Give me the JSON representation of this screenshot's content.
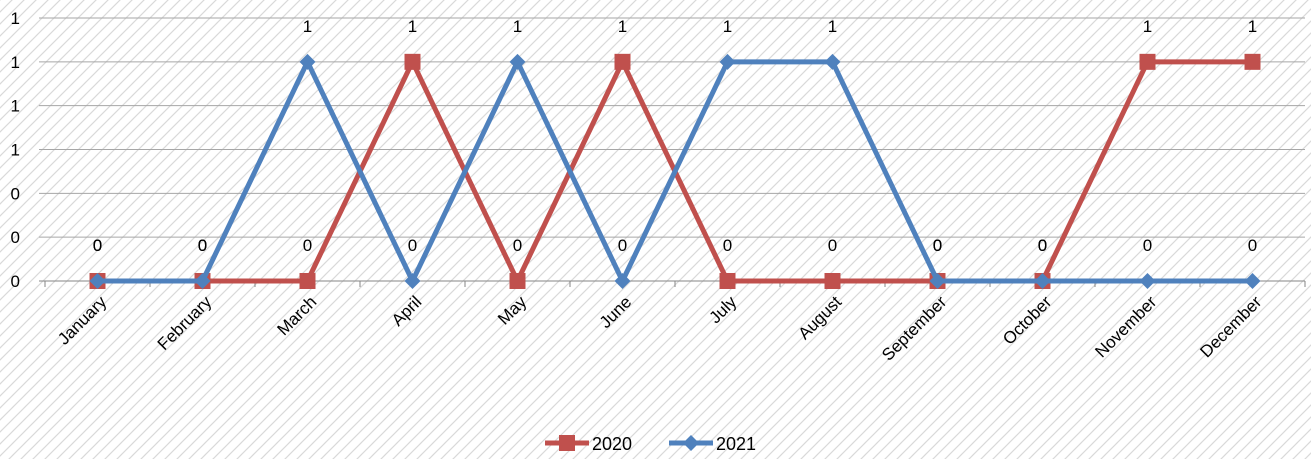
{
  "chart_data": {
    "type": "line",
    "title": "",
    "xlabel": "",
    "ylabel": "",
    "categories": [
      "January",
      "February",
      "March",
      "April",
      "May",
      "June",
      "July",
      "August",
      "September",
      "October",
      "November",
      "December"
    ],
    "series": [
      {
        "name": "2020",
        "color": "#c0504d",
        "marker": "square",
        "values": [
          0,
          0,
          0,
          1,
          0,
          1,
          0,
          0,
          0,
          0,
          1,
          1
        ]
      },
      {
        "name": "2021",
        "color": "#4f81bd",
        "marker": "diamond",
        "values": [
          0,
          0,
          1,
          0,
          1,
          0,
          1,
          1,
          0,
          0,
          0,
          0
        ]
      }
    ],
    "y_tick_labels": [
      "0",
      "0",
      "0",
      "1",
      "1",
      "1",
      "1"
    ],
    "ylim": [
      0,
      1.2
    ],
    "grid": true,
    "legend_position": "bottom"
  }
}
